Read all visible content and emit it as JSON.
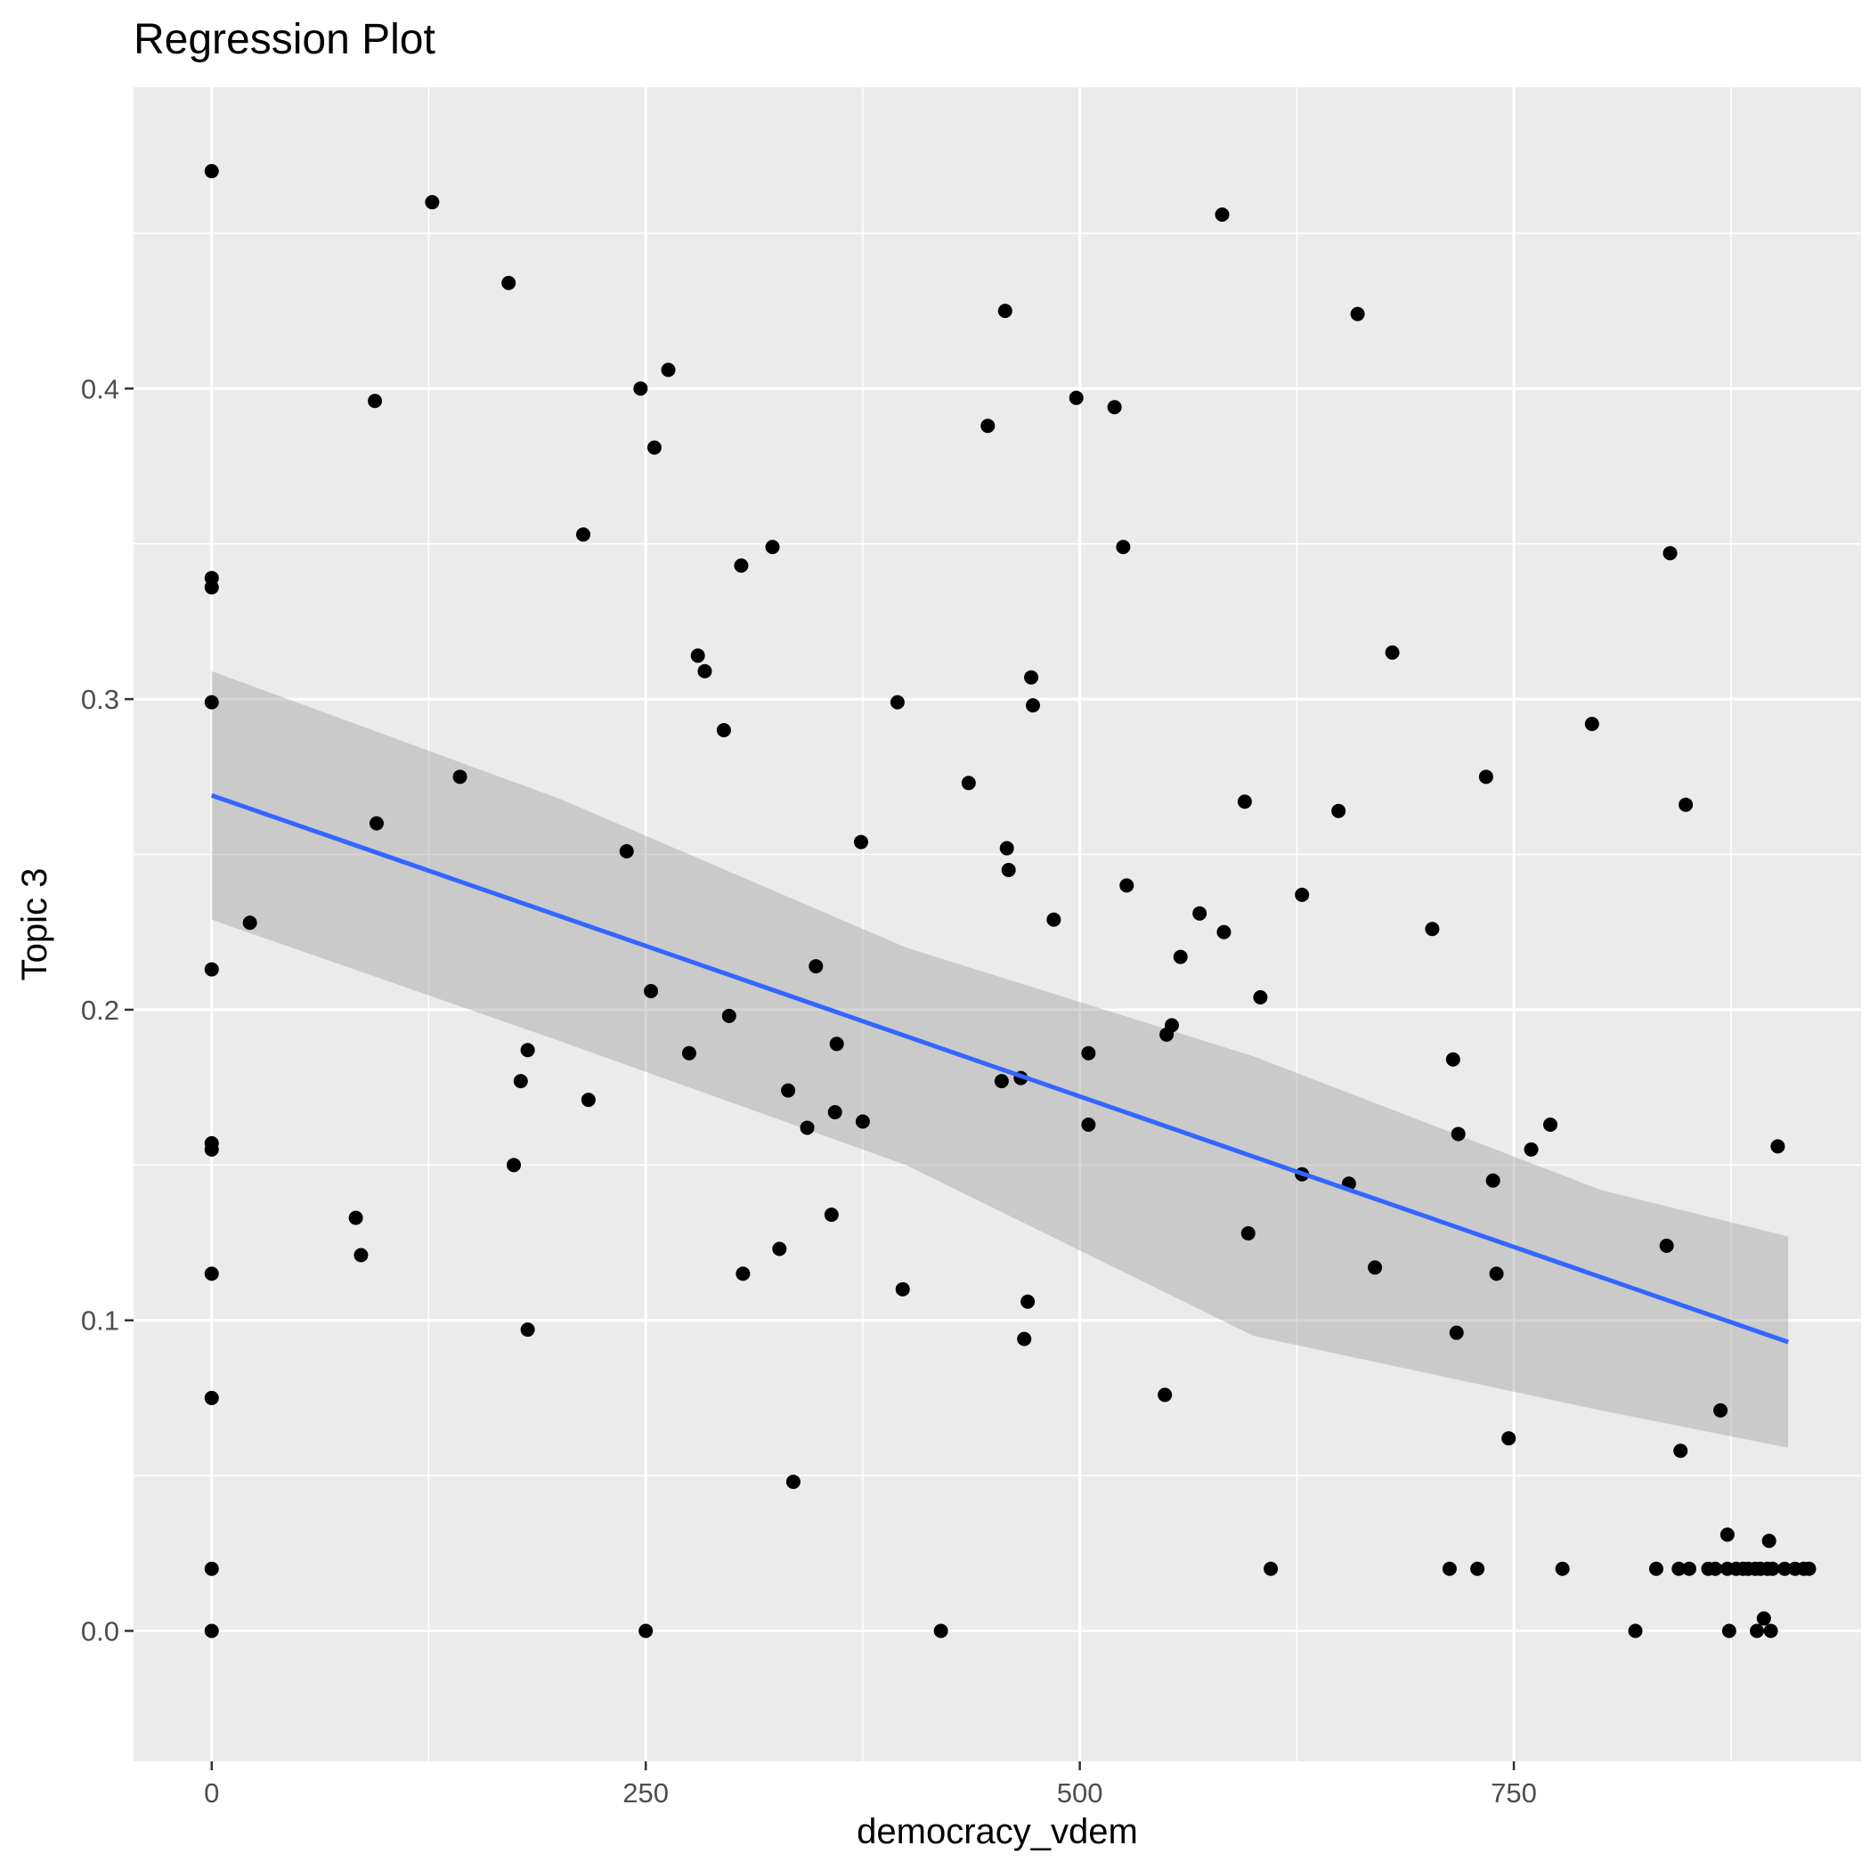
{
  "chart_data": {
    "type": "scatter",
    "title": "Regression Plot",
    "xlabel": "democracy_vdem",
    "ylabel": "Topic 3",
    "xlim": [
      -45,
      950
    ],
    "ylim": [
      -0.042,
      0.497
    ],
    "x_ticks": [
      0,
      250,
      500,
      750
    ],
    "x_tick_labels": [
      "0",
      "250",
      "500",
      "750"
    ],
    "y_ticks": [
      0.0,
      0.1,
      0.2,
      0.3,
      0.4
    ],
    "y_tick_labels": [
      "0.0",
      "0.1",
      "0.2",
      "0.3",
      "0.4"
    ],
    "grid": true,
    "legend": "none",
    "colors": {
      "panel": "#ebebeb",
      "grid": "#ffffff",
      "points": "#000000",
      "line": "#3366ff",
      "band": "#999999"
    },
    "points": [
      [
        0,
        0.47
      ],
      [
        0,
        0.339
      ],
      [
        0,
        0.336
      ],
      [
        0,
        0.299
      ],
      [
        0,
        0.213
      ],
      [
        0,
        0.157
      ],
      [
        0,
        0.155
      ],
      [
        0,
        0.115
      ],
      [
        0,
        0.075
      ],
      [
        0,
        0.02
      ],
      [
        0,
        0.0
      ],
      [
        22,
        0.228
      ],
      [
        83,
        0.133
      ],
      [
        86,
        0.121
      ],
      [
        94,
        0.396
      ],
      [
        95,
        0.26
      ],
      [
        127,
        0.46
      ],
      [
        143,
        0.275
      ],
      [
        171,
        0.434
      ],
      [
        174,
        0.15
      ],
      [
        178,
        0.177
      ],
      [
        182,
        0.187
      ],
      [
        182,
        0.097
      ],
      [
        214,
        0.353
      ],
      [
        217,
        0.171
      ],
      [
        239,
        0.251
      ],
      [
        247,
        0.4
      ],
      [
        250,
        0.0
      ],
      [
        253,
        0.206
      ],
      [
        255,
        0.381
      ],
      [
        263,
        0.406
      ],
      [
        275,
        0.186
      ],
      [
        280,
        0.314
      ],
      [
        284,
        0.309
      ],
      [
        295,
        0.29
      ],
      [
        298,
        0.198
      ],
      [
        305,
        0.343
      ],
      [
        306,
        0.115
      ],
      [
        323,
        0.349
      ],
      [
        327,
        0.123
      ],
      [
        332,
        0.174
      ],
      [
        335,
        0.048
      ],
      [
        343,
        0.162
      ],
      [
        348,
        0.214
      ],
      [
        357,
        0.134
      ],
      [
        359,
        0.167
      ],
      [
        360,
        0.189
      ],
      [
        374,
        0.254
      ],
      [
        375,
        0.164
      ],
      [
        395,
        0.299
      ],
      [
        398,
        0.11
      ],
      [
        420,
        0.0
      ],
      [
        436,
        0.273
      ],
      [
        447,
        0.388
      ],
      [
        455,
        0.177
      ],
      [
        457,
        0.425
      ],
      [
        458,
        0.252
      ],
      [
        459,
        0.245
      ],
      [
        466,
        0.178
      ],
      [
        468,
        0.094
      ],
      [
        470,
        0.106
      ],
      [
        472,
        0.307
      ],
      [
        473,
        0.298
      ],
      [
        485,
        0.229
      ],
      [
        498,
        0.397
      ],
      [
        505,
        0.186
      ],
      [
        505,
        0.163
      ],
      [
        520,
        0.394
      ],
      [
        525,
        0.349
      ],
      [
        527,
        0.24
      ],
      [
        549,
        0.076
      ],
      [
        550,
        0.192
      ],
      [
        553,
        0.195
      ],
      [
        558,
        0.217
      ],
      [
        569,
        0.231
      ],
      [
        582,
        0.456
      ],
      [
        583,
        0.225
      ],
      [
        595,
        0.267
      ],
      [
        597,
        0.128
      ],
      [
        604,
        0.204
      ],
      [
        610,
        0.02
      ],
      [
        628,
        0.237
      ],
      [
        628,
        0.147
      ],
      [
        649,
        0.264
      ],
      [
        655,
        0.144
      ],
      [
        660,
        0.424
      ],
      [
        670,
        0.117
      ],
      [
        680,
        0.315
      ],
      [
        703,
        0.226
      ],
      [
        713,
        0.02
      ],
      [
        715,
        0.184
      ],
      [
        717,
        0.096
      ],
      [
        718,
        0.16
      ],
      [
        729,
        0.02
      ],
      [
        734,
        0.275
      ],
      [
        738,
        0.145
      ],
      [
        740,
        0.115
      ],
      [
        747,
        0.062
      ],
      [
        760,
        0.155
      ],
      [
        771,
        0.163
      ],
      [
        778,
        0.02
      ],
      [
        795,
        0.292
      ],
      [
        820,
        0.0
      ],
      [
        832,
        0.02
      ],
      [
        838,
        0.124
      ],
      [
        840,
        0.347
      ],
      [
        845,
        0.02
      ],
      [
        846,
        0.058
      ],
      [
        851,
        0.02
      ],
      [
        849,
        0.266
      ],
      [
        862,
        0.02
      ],
      [
        866,
        0.02
      ],
      [
        869,
        0.071
      ],
      [
        873,
        0.031
      ],
      [
        873,
        0.02
      ],
      [
        874,
        0.0
      ],
      [
        878,
        0.02
      ],
      [
        882,
        0.02
      ],
      [
        885,
        0.02
      ],
      [
        889,
        0.02
      ],
      [
        890,
        0.0
      ],
      [
        892,
        0.02
      ],
      [
        894,
        0.004
      ],
      [
        896,
        0.02
      ],
      [
        897,
        0.029
      ],
      [
        898,
        0.0
      ],
      [
        899,
        0.02
      ],
      [
        902,
        0.156
      ],
      [
        906,
        0.02
      ],
      [
        912,
        0.02
      ],
      [
        917,
        0.02
      ],
      [
        920,
        0.02
      ]
    ],
    "regression_line": {
      "x": [
        0,
        908
      ],
      "y": [
        0.269,
        0.093
      ]
    },
    "confidence_band": {
      "x": [
        0,
        200,
        400,
        600,
        800,
        908
      ],
      "lower": [
        0.229,
        0.19,
        0.15,
        0.095,
        0.071,
        0.059
      ],
      "upper": [
        0.309,
        0.268,
        0.22,
        0.185,
        0.142,
        0.127
      ]
    }
  }
}
